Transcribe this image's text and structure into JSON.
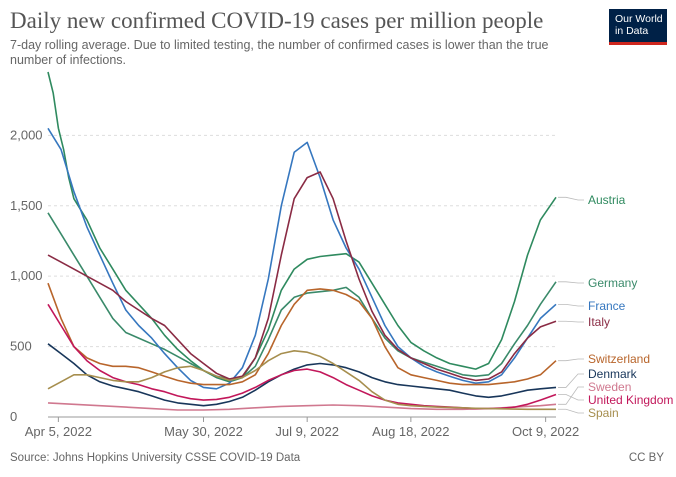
{
  "header": {
    "title": "Daily new confirmed COVID-19 cases per million people",
    "subtitle": "7-day rolling average. Due to limited testing, the number of confirmed cases is lower than the true number of infections."
  },
  "logo": {
    "line1": "Our World",
    "line2": "in Data"
  },
  "footer": {
    "source": "Source: Johns Hopkins University CSSE COVID-19 Data",
    "license": "CC BY"
  },
  "colors": {
    "grid": "#dddddd",
    "axis": "#999999",
    "logo_bg": "#002147",
    "logo_bar": "#ce261e"
  },
  "chart_data": {
    "type": "line",
    "title": "Daily new confirmed COVID-19 cases per million people",
    "x_range_days": [
      0,
      196
    ],
    "x_ticks": [
      {
        "day": 4,
        "label": "Apr 5, 2022"
      },
      {
        "day": 60,
        "label": "May 30, 2022"
      },
      {
        "day": 100,
        "label": "Jul 9, 2022"
      },
      {
        "day": 140,
        "label": "Aug 18, 2022"
      },
      {
        "day": 192,
        "label": "Oct 9, 2022"
      }
    ],
    "y_ticks": [
      0,
      500,
      1000,
      1500,
      2000
    ],
    "ylim": [
      0,
      2450
    ],
    "series": [
      {
        "name": "Austria",
        "color": "#2f8a5f",
        "x": [
          0,
          2,
          4,
          6,
          8,
          10,
          15,
          20,
          25,
          30,
          35,
          40,
          45,
          50,
          55,
          60,
          65,
          70,
          75,
          80,
          85,
          90,
          95,
          100,
          105,
          110,
          115,
          120,
          125,
          130,
          135,
          140,
          145,
          150,
          155,
          160,
          165,
          170,
          175,
          180,
          185,
          190,
          196
        ],
        "y": [
          2450,
          2300,
          2050,
          1900,
          1700,
          1550,
          1400,
          1200,
          1050,
          900,
          800,
          700,
          580,
          480,
          400,
          330,
          280,
          250,
          280,
          420,
          620,
          900,
          1050,
          1120,
          1140,
          1150,
          1160,
          1100,
          950,
          800,
          650,
          530,
          470,
          420,
          380,
          360,
          340,
          380,
          550,
          820,
          1150,
          1400,
          1560
        ]
      },
      {
        "name": "Germany",
        "color": "#3a8a6a",
        "x": [
          0,
          5,
          10,
          15,
          20,
          25,
          30,
          35,
          40,
          45,
          50,
          55,
          60,
          65,
          70,
          75,
          80,
          85,
          90,
          95,
          100,
          105,
          110,
          115,
          120,
          125,
          130,
          135,
          140,
          145,
          150,
          155,
          160,
          165,
          170,
          175,
          180,
          185,
          190,
          196
        ],
        "y": [
          1450,
          1300,
          1150,
          1000,
          850,
          700,
          600,
          560,
          520,
          480,
          430,
          380,
          330,
          290,
          270,
          280,
          360,
          550,
          760,
          850,
          880,
          890,
          900,
          920,
          850,
          700,
          560,
          470,
          420,
          390,
          360,
          330,
          300,
          290,
          300,
          380,
          520,
          650,
          800,
          960
        ]
      },
      {
        "name": "France",
        "color": "#3677bf",
        "x": [
          0,
          5,
          10,
          15,
          20,
          25,
          30,
          35,
          40,
          45,
          50,
          55,
          60,
          65,
          70,
          75,
          80,
          85,
          90,
          95,
          100,
          105,
          110,
          115,
          120,
          125,
          130,
          135,
          140,
          145,
          150,
          155,
          160,
          165,
          170,
          175,
          180,
          185,
          190,
          196
        ],
        "y": [
          2050,
          1900,
          1600,
          1350,
          1150,
          950,
          760,
          650,
          560,
          450,
          350,
          260,
          210,
          200,
          240,
          350,
          580,
          980,
          1500,
          1880,
          1950,
          1700,
          1400,
          1200,
          1050,
          850,
          650,
          500,
          420,
          360,
          320,
          290,
          260,
          240,
          250,
          300,
          420,
          560,
          700,
          800
        ]
      },
      {
        "name": "Italy",
        "color": "#8a2b44",
        "x": [
          0,
          5,
          10,
          15,
          20,
          25,
          30,
          35,
          40,
          45,
          50,
          55,
          60,
          65,
          70,
          75,
          80,
          85,
          90,
          95,
          100,
          105,
          110,
          115,
          120,
          125,
          130,
          135,
          140,
          145,
          150,
          155,
          160,
          165,
          170,
          175,
          180,
          185,
          190,
          196
        ],
        "y": [
          1150,
          1100,
          1050,
          1000,
          950,
          900,
          820,
          760,
          700,
          650,
          550,
          450,
          380,
          310,
          270,
          290,
          420,
          700,
          1150,
          1550,
          1700,
          1740,
          1550,
          1250,
          980,
          750,
          580,
          480,
          420,
          380,
          340,
          310,
          280,
          260,
          270,
          320,
          450,
          560,
          640,
          680
        ]
      },
      {
        "name": "Switzerland",
        "color": "#b8652b",
        "x": [
          0,
          5,
          10,
          15,
          20,
          25,
          30,
          35,
          40,
          45,
          50,
          55,
          60,
          65,
          70,
          75,
          80,
          85,
          90,
          95,
          100,
          105,
          110,
          115,
          120,
          125,
          130,
          135,
          140,
          145,
          150,
          155,
          160,
          165,
          170,
          175,
          180,
          185,
          190,
          196
        ],
        "y": [
          950,
          700,
          500,
          420,
          380,
          360,
          360,
          350,
          320,
          290,
          260,
          240,
          230,
          230,
          230,
          250,
          300,
          450,
          650,
          800,
          900,
          910,
          900,
          870,
          820,
          700,
          500,
          350,
          300,
          280,
          260,
          240,
          230,
          230,
          230,
          240,
          250,
          270,
          300,
          400
        ]
      },
      {
        "name": "Denmark",
        "color": "#18365a",
        "x": [
          0,
          5,
          10,
          15,
          20,
          25,
          30,
          35,
          40,
          45,
          50,
          55,
          60,
          65,
          70,
          75,
          80,
          85,
          90,
          95,
          100,
          105,
          110,
          115,
          120,
          125,
          130,
          135,
          140,
          145,
          150,
          155,
          160,
          165,
          170,
          175,
          180,
          185,
          190,
          196
        ],
        "y": [
          520,
          450,
          380,
          300,
          250,
          220,
          200,
          180,
          150,
          120,
          100,
          90,
          80,
          90,
          110,
          140,
          190,
          250,
          300,
          340,
          370,
          380,
          370,
          350,
          320,
          280,
          250,
          230,
          220,
          210,
          200,
          190,
          170,
          150,
          140,
          150,
          170,
          190,
          200,
          210
        ]
      },
      {
        "name": "Sweden",
        "color": "#d0788f",
        "x": [
          0,
          10,
          20,
          30,
          40,
          50,
          60,
          70,
          80,
          90,
          100,
          110,
          120,
          130,
          140,
          150,
          160,
          170,
          180,
          190,
          196
        ],
        "y": [
          100,
          90,
          80,
          70,
          60,
          50,
          50,
          55,
          65,
          75,
          80,
          85,
          80,
          70,
          60,
          55,
          55,
          60,
          70,
          80,
          90
        ]
      },
      {
        "name": "United Kingdom",
        "color": "#c2175a",
        "x": [
          0,
          5,
          10,
          15,
          20,
          25,
          30,
          35,
          40,
          45,
          50,
          55,
          60,
          65,
          70,
          75,
          80,
          85,
          90,
          95,
          100,
          105,
          110,
          115,
          120,
          125,
          130,
          135,
          140,
          145,
          150,
          155,
          160,
          165,
          170,
          175,
          180,
          185,
          190,
          196
        ],
        "y": [
          800,
          650,
          500,
          400,
          330,
          280,
          250,
          230,
          200,
          180,
          150,
          130,
          120,
          125,
          140,
          170,
          210,
          260,
          300,
          330,
          340,
          320,
          280,
          230,
          190,
          150,
          120,
          100,
          90,
          80,
          75,
          70,
          65,
          60,
          60,
          62,
          70,
          90,
          120,
          160
        ]
      },
      {
        "name": "Spain",
        "color": "#a68e4e",
        "x": [
          0,
          5,
          10,
          15,
          20,
          25,
          30,
          35,
          40,
          45,
          50,
          55,
          60,
          65,
          70,
          75,
          80,
          85,
          90,
          95,
          100,
          105,
          110,
          115,
          120,
          125,
          130,
          135,
          140,
          145,
          150,
          155,
          160,
          165,
          170,
          175,
          180,
          185,
          190,
          196
        ],
        "y": [
          200,
          250,
          300,
          300,
          280,
          260,
          250,
          250,
          280,
          320,
          350,
          360,
          330,
          290,
          260,
          280,
          330,
          400,
          450,
          470,
          460,
          430,
          380,
          320,
          260,
          180,
          120,
          90,
          80,
          75,
          70,
          68,
          65,
          62,
          60,
          58,
          56,
          55,
          55,
          55
        ]
      }
    ]
  }
}
